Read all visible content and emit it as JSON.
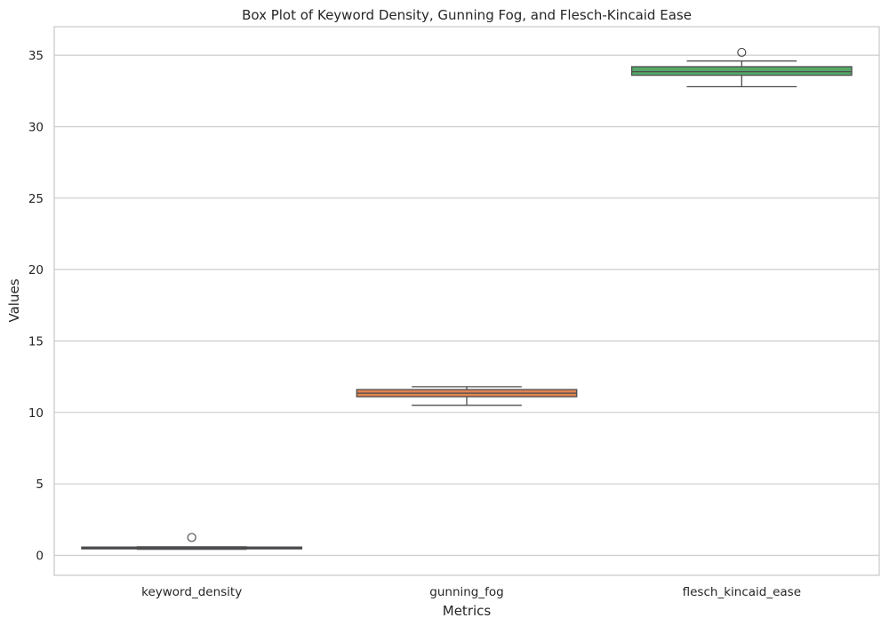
{
  "chart_data": {
    "type": "box",
    "title": "Box Plot of Keyword Density, Gunning Fog, and Flesch-Kincaid Ease",
    "xlabel": "Metrics",
    "ylabel": "Values",
    "categories": [
      "keyword_density",
      "gunning_fog",
      "flesch_kincaid_ease"
    ],
    "ylim": [
      -1.4,
      37.0
    ],
    "yticks": [
      0,
      5,
      10,
      15,
      20,
      25,
      30,
      35
    ],
    "grid": true,
    "boxes": [
      {
        "name": "keyword_density",
        "color": "#4c72b0",
        "whisker_low": 0.42,
        "q1": 0.45,
        "median": 0.5,
        "q3": 0.58,
        "whisker_high": 0.6,
        "outliers": [
          1.25
        ]
      },
      {
        "name": "gunning_fog",
        "color": "#dd8452",
        "whisker_low": 10.5,
        "q1": 11.1,
        "median": 11.35,
        "q3": 11.6,
        "whisker_high": 11.8,
        "outliers": []
      },
      {
        "name": "flesch_kincaid_ease",
        "color": "#55a868",
        "whisker_low": 32.8,
        "q1": 33.6,
        "median": 33.85,
        "q3": 34.2,
        "whisker_high": 34.6,
        "outliers": [
          35.2
        ]
      }
    ]
  }
}
